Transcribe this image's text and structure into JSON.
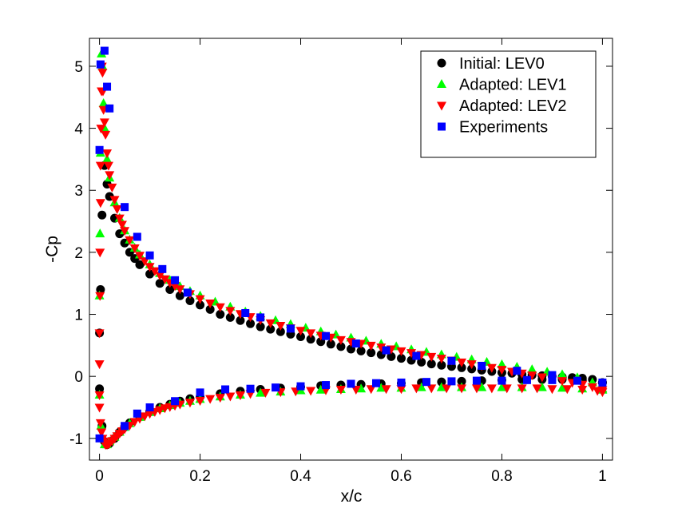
{
  "chart_data": {
    "type": "scatter",
    "xlabel": "x/c",
    "ylabel": "-Cp",
    "xlim": [
      -0.02,
      1.02
    ],
    "ylim": [
      -1.35,
      5.45
    ],
    "x_ticks": [
      0,
      0.2,
      0.4,
      0.6,
      0.8,
      1
    ],
    "x_tick_labels": [
      "0",
      "0.2",
      "0.4",
      "0.6",
      "0.8",
      "1"
    ],
    "y_ticks": [
      -1,
      0,
      1,
      2,
      3,
      4,
      5
    ],
    "y_tick_labels": [
      "-1",
      "0",
      "1",
      "2",
      "3",
      "4",
      "5"
    ],
    "grid": false,
    "legend_position": "top-right",
    "series": [
      {
        "name": "Initial: LEV0",
        "marker": "circle",
        "color": "#000000",
        "upper": {
          "x": [
            0.0,
            0.002,
            0.005,
            0.01,
            0.015,
            0.02,
            0.03,
            0.04,
            0.05,
            0.06,
            0.07,
            0.08,
            0.1,
            0.12,
            0.14,
            0.16,
            0.18,
            0.2,
            0.22,
            0.24,
            0.26,
            0.28,
            0.3,
            0.32,
            0.34,
            0.36,
            0.38,
            0.4,
            0.42,
            0.44,
            0.46,
            0.48,
            0.5,
            0.52,
            0.54,
            0.56,
            0.58,
            0.6,
            0.62,
            0.64,
            0.66,
            0.68,
            0.7,
            0.72,
            0.74,
            0.76,
            0.78,
            0.8,
            0.82,
            0.84,
            0.86,
            0.88,
            0.9,
            0.92,
            0.94,
            0.96,
            0.98,
            1.0
          ],
          "y": [
            0.7,
            1.4,
            2.6,
            3.4,
            3.1,
            2.9,
            2.55,
            2.3,
            2.15,
            2.0,
            1.9,
            1.8,
            1.65,
            1.5,
            1.4,
            1.3,
            1.22,
            1.15,
            1.08,
            1.0,
            0.95,
            0.9,
            0.85,
            0.8,
            0.76,
            0.72,
            0.68,
            0.64,
            0.6,
            0.56,
            0.52,
            0.48,
            0.44,
            0.41,
            0.38,
            0.35,
            0.32,
            0.29,
            0.26,
            0.23,
            0.2,
            0.18,
            0.16,
            0.14,
            0.12,
            0.1,
            0.08,
            0.06,
            0.05,
            0.03,
            0.02,
            0.01,
            0.0,
            -0.01,
            -0.02,
            -0.03,
            -0.05,
            -0.1
          ]
        },
        "lower": {
          "x": [
            0.0,
            0.005,
            0.01,
            0.015,
            0.02,
            0.03,
            0.04,
            0.05,
            0.06,
            0.08,
            0.1,
            0.12,
            0.14,
            0.16,
            0.18,
            0.2,
            0.24,
            0.28,
            0.32,
            0.36,
            0.4,
            0.44,
            0.48,
            0.52,
            0.56,
            0.6,
            0.64,
            0.68,
            0.72,
            0.76,
            0.8,
            0.84,
            0.88,
            0.92,
            0.96,
            1.0
          ],
          "y": [
            -0.2,
            -0.8,
            -1.05,
            -1.1,
            -1.08,
            -1.0,
            -0.9,
            -0.82,
            -0.75,
            -0.65,
            -0.57,
            -0.5,
            -0.45,
            -0.4,
            -0.36,
            -0.33,
            -0.28,
            -0.24,
            -0.21,
            -0.19,
            -0.17,
            -0.15,
            -0.14,
            -0.13,
            -0.12,
            -0.11,
            -0.1,
            -0.09,
            -0.08,
            -0.07,
            -0.06,
            -0.05,
            -0.05,
            -0.05,
            -0.06,
            -0.1
          ]
        }
      },
      {
        "name": "Adapted: LEV1",
        "marker": "triangle-up",
        "color": "#00ff00",
        "upper": {
          "x": [
            0.0,
            0.001,
            0.002,
            0.004,
            0.006,
            0.008,
            0.01,
            0.015,
            0.02,
            0.03,
            0.04,
            0.05,
            0.06,
            0.07,
            0.08,
            0.1,
            0.12,
            0.14,
            0.16,
            0.18,
            0.2,
            0.23,
            0.26,
            0.29,
            0.32,
            0.35,
            0.38,
            0.41,
            0.44,
            0.47,
            0.5,
            0.53,
            0.56,
            0.59,
            0.62,
            0.65,
            0.68,
            0.71,
            0.74,
            0.77,
            0.8,
            0.83,
            0.86,
            0.89,
            0.92,
            0.95,
            0.98,
            1.0
          ],
          "y": [
            1.3,
            2.3,
            3.6,
            5.2,
            5.0,
            4.4,
            4.0,
            3.5,
            3.2,
            2.8,
            2.55,
            2.35,
            2.2,
            2.07,
            1.96,
            1.8,
            1.66,
            1.55,
            1.45,
            1.37,
            1.3,
            1.2,
            1.12,
            1.04,
            0.97,
            0.9,
            0.84,
            0.78,
            0.72,
            0.67,
            0.62,
            0.57,
            0.52,
            0.48,
            0.43,
            0.39,
            0.35,
            0.31,
            0.27,
            0.23,
            0.19,
            0.15,
            0.11,
            0.07,
            0.03,
            -0.02,
            -0.1,
            -0.2
          ]
        },
        "lower": {
          "x": [
            0.0,
            0.003,
            0.006,
            0.01,
            0.015,
            0.02,
            0.03,
            0.04,
            0.05,
            0.06,
            0.08,
            0.1,
            0.12,
            0.14,
            0.16,
            0.18,
            0.2,
            0.24,
            0.28,
            0.32,
            0.36,
            0.4,
            0.44,
            0.48,
            0.52,
            0.56,
            0.6,
            0.64,
            0.68,
            0.72,
            0.76,
            0.8,
            0.84,
            0.88,
            0.92,
            0.96,
            1.0
          ],
          "y": [
            -0.3,
            -0.8,
            -1.0,
            -1.1,
            -1.1,
            -1.05,
            -0.98,
            -0.9,
            -0.82,
            -0.76,
            -0.66,
            -0.58,
            -0.52,
            -0.47,
            -0.43,
            -0.4,
            -0.37,
            -0.33,
            -0.3,
            -0.27,
            -0.25,
            -0.23,
            -0.22,
            -0.21,
            -0.2,
            -0.19,
            -0.19,
            -0.18,
            -0.18,
            -0.18,
            -0.18,
            -0.18,
            -0.18,
            -0.18,
            -0.19,
            -0.2,
            -0.22
          ]
        }
      },
      {
        "name": "Adapted: LEV2",
        "marker": "triangle-down",
        "color": "#ff0000",
        "upper": {
          "x": [
            0.0,
            0.0,
            0.0,
            0.001,
            0.001,
            0.002,
            0.002,
            0.003,
            0.004,
            0.005,
            0.006,
            0.007,
            0.008,
            0.01,
            0.012,
            0.015,
            0.018,
            0.02,
            0.025,
            0.03,
            0.035,
            0.04,
            0.045,
            0.05,
            0.06,
            0.07,
            0.08,
            0.09,
            0.1,
            0.11,
            0.12,
            0.13,
            0.14,
            0.15,
            0.16,
            0.18,
            0.2,
            0.22,
            0.24,
            0.26,
            0.28,
            0.3,
            0.32,
            0.34,
            0.36,
            0.38,
            0.4,
            0.42,
            0.44,
            0.46,
            0.48,
            0.5,
            0.52,
            0.54,
            0.56,
            0.58,
            0.6,
            0.62,
            0.64,
            0.66,
            0.68,
            0.7,
            0.72,
            0.74,
            0.76,
            0.78,
            0.8,
            0.82,
            0.84,
            0.86,
            0.88,
            0.9,
            0.92,
            0.94,
            0.96,
            0.98,
            1.0
          ],
          "y": [
            -0.3,
            0.2,
            0.7,
            1.3,
            2.0,
            2.8,
            3.4,
            4.0,
            4.6,
            5.0,
            4.9,
            4.6,
            4.3,
            4.1,
            3.9,
            3.6,
            3.4,
            3.25,
            3.05,
            2.85,
            2.7,
            2.55,
            2.45,
            2.35,
            2.2,
            2.07,
            1.95,
            1.86,
            1.77,
            1.7,
            1.63,
            1.57,
            1.51,
            1.46,
            1.41,
            1.33,
            1.25,
            1.18,
            1.12,
            1.06,
            1.01,
            0.96,
            0.91,
            0.86,
            0.82,
            0.78,
            0.74,
            0.7,
            0.66,
            0.63,
            0.59,
            0.56,
            0.53,
            0.5,
            0.47,
            0.44,
            0.41,
            0.38,
            0.35,
            0.32,
            0.29,
            0.26,
            0.23,
            0.2,
            0.17,
            0.14,
            0.11,
            0.08,
            0.05,
            0.02,
            -0.01,
            -0.04,
            -0.07,
            -0.1,
            -0.13,
            -0.17,
            -0.22
          ]
        },
        "lower": {
          "x": [
            0.0,
            0.002,
            0.004,
            0.006,
            0.008,
            0.01,
            0.012,
            0.015,
            0.018,
            0.02,
            0.025,
            0.03,
            0.035,
            0.04,
            0.045,
            0.05,
            0.06,
            0.07,
            0.08,
            0.09,
            0.1,
            0.11,
            0.12,
            0.13,
            0.14,
            0.15,
            0.16,
            0.18,
            0.2,
            0.22,
            0.24,
            0.26,
            0.28,
            0.3,
            0.33,
            0.36,
            0.39,
            0.42,
            0.45,
            0.48,
            0.51,
            0.54,
            0.57,
            0.6,
            0.63,
            0.66,
            0.69,
            0.72,
            0.75,
            0.78,
            0.81,
            0.84,
            0.87,
            0.9,
            0.93,
            0.96,
            0.99,
            1.0
          ],
          "y": [
            -0.5,
            -0.75,
            -0.9,
            -1.0,
            -1.05,
            -1.08,
            -1.1,
            -1.1,
            -1.09,
            -1.08,
            -1.04,
            -1.0,
            -0.96,
            -0.92,
            -0.88,
            -0.85,
            -0.79,
            -0.73,
            -0.68,
            -0.64,
            -0.6,
            -0.57,
            -0.54,
            -0.51,
            -0.49,
            -0.47,
            -0.45,
            -0.42,
            -0.39,
            -0.36,
            -0.34,
            -0.32,
            -0.3,
            -0.28,
            -0.26,
            -0.25,
            -0.24,
            -0.23,
            -0.22,
            -0.21,
            -0.21,
            -0.2,
            -0.2,
            -0.2,
            -0.19,
            -0.19,
            -0.19,
            -0.19,
            -0.19,
            -0.19,
            -0.19,
            -0.19,
            -0.19,
            -0.2,
            -0.2,
            -0.21,
            -0.23,
            -0.25
          ]
        }
      },
      {
        "name": "Experiments",
        "marker": "square",
        "color": "#0000ff",
        "upper": {
          "x": [
            0.0,
            0.002,
            0.01,
            0.015,
            0.02,
            0.05,
            0.075,
            0.1,
            0.125,
            0.15,
            0.175,
            0.29,
            0.32,
            0.38,
            0.45,
            0.51,
            0.57,
            0.63,
            0.7,
            0.76,
            0.83,
            0.9
          ],
          "y": [
            3.65,
            5.03,
            5.25,
            4.67,
            4.32,
            2.73,
            2.25,
            1.95,
            1.73,
            1.55,
            1.35,
            1.02,
            0.95,
            0.77,
            0.65,
            0.53,
            0.42,
            0.33,
            0.25,
            0.17,
            0.09,
            0.02
          ]
        },
        "lower": {
          "x": [
            0.0,
            0.05,
            0.075,
            0.1,
            0.15,
            0.2,
            0.25,
            0.3,
            0.35,
            0.4,
            0.45,
            0.5,
            0.55,
            0.6,
            0.65,
            0.7,
            0.75,
            0.8,
            0.85,
            0.9,
            0.95,
            1.0
          ],
          "y": [
            -1.0,
            -0.8,
            -0.6,
            -0.5,
            -0.4,
            -0.26,
            -0.21,
            -0.2,
            -0.18,
            -0.16,
            -0.14,
            -0.12,
            -0.11,
            -0.1,
            -0.09,
            -0.08,
            -0.07,
            -0.07,
            -0.06,
            -0.06,
            -0.07,
            -0.1
          ]
        }
      }
    ]
  }
}
